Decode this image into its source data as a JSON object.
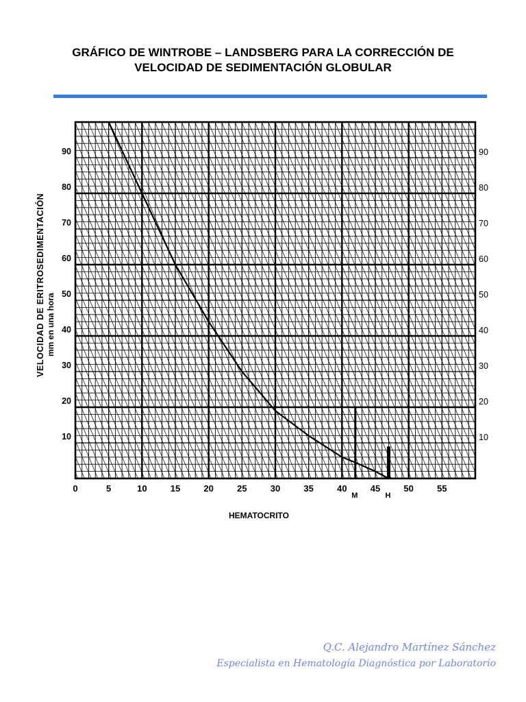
{
  "document": {
    "title_line1": "GRÁFICO DE WINTROBE – LANDSBERG PARA LA CORRECCIÓN DE",
    "title_line2": "VELOCIDAD DE SEDIMENTACIÓN GLOBULAR",
    "accent_color": "#3a7be0",
    "signature_line1": "Q.C. Alejandro Martínez Sánchez",
    "signature_line2": "Especialista en Hematología Diagnóstica por Laboratorio",
    "signature_color": "#6f86e6"
  },
  "chart_data": {
    "type": "line",
    "title": "",
    "xlabel": "HEMATOCRITO",
    "ylabel": "VELOCIDAD DE ERITROSEDIMENTACIÓN",
    "ylabel_sub": "mm en una hora",
    "xlim": [
      0,
      60
    ],
    "ylim": [
      0,
      100
    ],
    "x_ticks": [
      0,
      5,
      10,
      15,
      20,
      25,
      30,
      35,
      40,
      45,
      50,
      55
    ],
    "y_ticks": [
      10,
      20,
      30,
      40,
      50,
      60,
      70,
      80,
      90
    ],
    "grid": true,
    "markers": [
      {
        "label": "M",
        "x": 42
      },
      {
        "label": "H",
        "x": 47
      }
    ],
    "series": [
      {
        "x": [
          5,
          10,
          15,
          20,
          25,
          30,
          35,
          40,
          42,
          45,
          47
        ],
        "y": [
          100,
          80,
          60,
          44,
          30,
          19,
          12,
          6,
          4.5,
          2,
          0
        ]
      }
    ]
  }
}
